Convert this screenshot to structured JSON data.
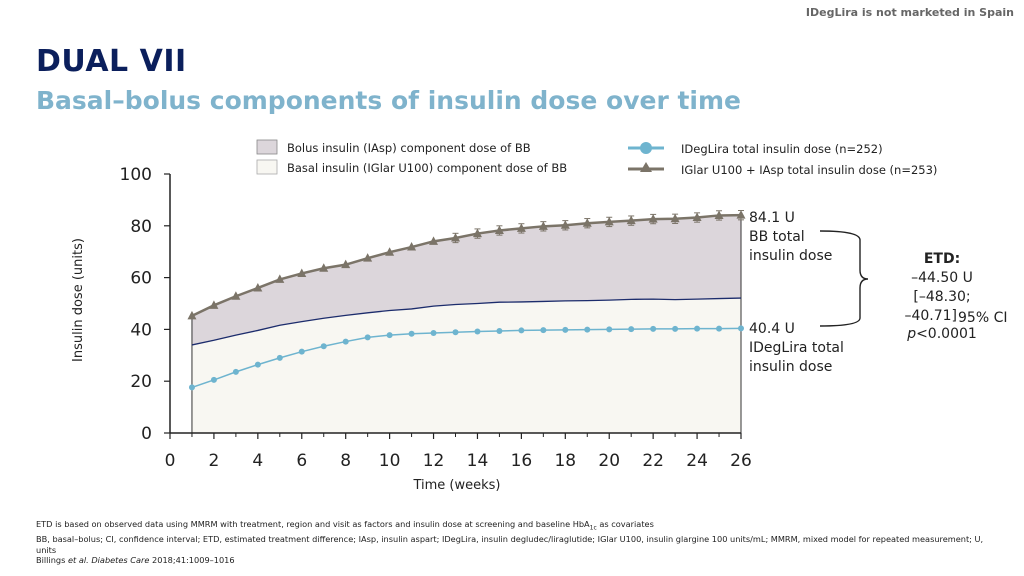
{
  "header": {
    "top_note": "IDegLira is not marketed in Spain",
    "title": "DUAL VII",
    "subtitle": "Basal–bolus components of insulin dose over time"
  },
  "colors": {
    "title": "#0b1f5c",
    "subtitle": "#7fb3cc",
    "bolus_fill": "#dcd6db",
    "basal_fill": "#f8f7f2",
    "basal_line": "#1c2c6c",
    "ideglira": "#6eb4cf",
    "iglar": "#7b7468"
  },
  "chart_data": {
    "type": "line",
    "xlabel": "Time (weeks)",
    "ylabel": "Insulin dose (units)",
    "xlim": [
      0,
      26
    ],
    "ylim": [
      0,
      100
    ],
    "xticks": [
      0,
      2,
      4,
      6,
      8,
      10,
      12,
      14,
      16,
      18,
      20,
      22,
      24,
      26
    ],
    "yticks": [
      0,
      20,
      40,
      60,
      80,
      100
    ],
    "legend": [
      "Bolus insulin (IAsp) component dose of BB",
      "Basal insulin (IGlar U100) component dose of BB",
      "IDegLira total insulin dose (n=252)",
      "IGlar U100 + IAsp total insulin dose (n=253)"
    ],
    "series": [
      {
        "name": "IGlar U100 + IAsp total insulin dose (n=253)",
        "x": [
          1,
          2,
          3,
          4,
          5,
          6,
          7,
          8,
          9,
          10,
          11,
          12,
          13,
          14,
          15,
          16,
          17,
          18,
          19,
          20,
          21,
          22,
          23,
          24,
          25,
          26
        ],
        "values": [
          45.2,
          49.3,
          52.8,
          56.0,
          59.3,
          61.6,
          63.6,
          65.0,
          67.5,
          69.8,
          71.8,
          74.0,
          75.3,
          77.0,
          78.2,
          79.0,
          79.8,
          80.2,
          81.0,
          81.5,
          82.0,
          82.6,
          82.7,
          83.2,
          84.0,
          84.1
        ],
        "error_from_x": 13,
        "error": 1.8
      },
      {
        "name": "IDegLira total insulin dose (n=252)",
        "x": [
          1,
          2,
          3,
          4,
          5,
          6,
          7,
          8,
          9,
          10,
          11,
          12,
          13,
          14,
          15,
          16,
          17,
          18,
          19,
          20,
          21,
          22,
          23,
          24,
          25,
          26
        ],
        "values": [
          17.6,
          20.5,
          23.6,
          26.4,
          29.0,
          31.4,
          33.5,
          35.3,
          36.9,
          37.8,
          38.3,
          38.6,
          38.9,
          39.2,
          39.4,
          39.6,
          39.7,
          39.8,
          39.9,
          40.0,
          40.1,
          40.2,
          40.2,
          40.3,
          40.3,
          40.4
        ]
      },
      {
        "name": "Basal insulin (IGlar U100) component dose of BB",
        "x": [
          1,
          2,
          3,
          4,
          5,
          6,
          7,
          8,
          9,
          10,
          11,
          12,
          13,
          14,
          15,
          16,
          17,
          18,
          19,
          20,
          21,
          22,
          23,
          24,
          25,
          26
        ],
        "values": [
          34.0,
          35.8,
          37.8,
          39.6,
          41.6,
          43.0,
          44.3,
          45.4,
          46.4,
          47.3,
          47.9,
          49.0,
          49.6,
          50.0,
          50.5,
          50.6,
          50.8,
          51.0,
          51.1,
          51.3,
          51.6,
          51.7,
          51.5,
          51.7,
          51.9,
          52.1
        ]
      }
    ],
    "annotations": {
      "bb_total": [
        "84.1 U",
        "BB total",
        "insulin dose"
      ],
      "ideglira_total": [
        "40.4 U",
        "IDegLira total",
        "insulin dose"
      ],
      "etd": {
        "label": "ETD:",
        "value": "–44.50 U",
        "ci_line1": "[–48.30;",
        "ci_line2": "–40.71]",
        "ci_sub": "95% CI",
        "p_prefix": "p",
        "p_value": "<0.0001"
      }
    }
  },
  "footnote": {
    "line1a": "ETD is based on observed data using MMRM with treatment, region and visit as factors and insulin dose at screening and baseline HbA",
    "line1_sub": "1c",
    "line1b": " as covariates",
    "line2": "BB, basal–bolus; CI, confidence interval; ETD, estimated treatment difference; IAsp, insulin aspart; IDegLira, insulin degludec/liraglutide; IGlar U100, insulin glargine 100 units/mL; MMRM, mixed model for repeated measurement; U, units",
    "ref_author": "Billings ",
    "ref_etal": "et al.",
    "ref_journal": "Diabetes Care",
    "ref_rest": " 2018;41:1009–1016"
  }
}
